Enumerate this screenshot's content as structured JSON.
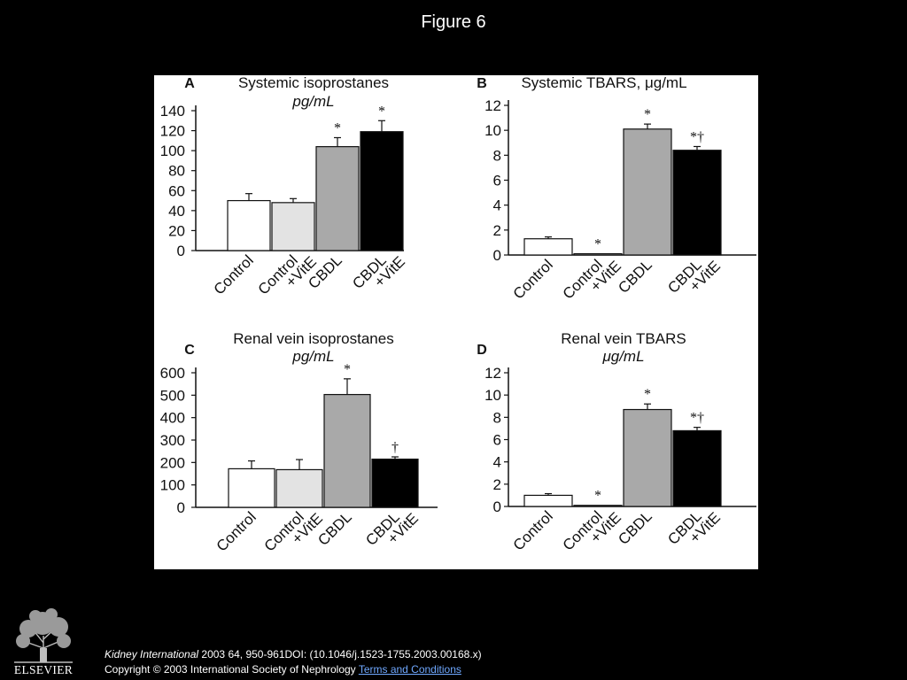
{
  "page": {
    "title": "Figure 6"
  },
  "footer": {
    "journal": "Kidney International",
    "details": " 2003 64, 950-961DOI: (10.1046/j.1523-1755.2003.00168.x)",
    "copyright": "Copyright © 2003 International Society of Nephrology",
    "terms_link": "Terms and Conditions",
    "publisher": "ELSEVIER"
  },
  "colors": {
    "control": "#ffffff",
    "control_vite": "#e3e3e3",
    "cbdl": "#a9a9a9",
    "cbdl_vite": "#000000"
  },
  "chart_data": [
    {
      "type": "bar",
      "panel_letter": "A",
      "title": "Systemic isoprostanes",
      "unit": "pg/mL",
      "categories": [
        [
          "Control"
        ],
        [
          "Control",
          "+VitE"
        ],
        [
          "CBDL"
        ],
        [
          "CBDL",
          "+VitE"
        ]
      ],
      "values": [
        50,
        48,
        104,
        119
      ],
      "errors": [
        7,
        4,
        9,
        11
      ],
      "markers": [
        "",
        "",
        "*",
        "*"
      ],
      "ylim": [
        0,
        140
      ],
      "yticks": [
        0,
        20,
        40,
        60,
        80,
        100,
        120,
        140
      ]
    },
    {
      "type": "bar",
      "panel_letter": "B",
      "title": "Systemic TBARS, μg/mL",
      "unit": "",
      "categories": [
        [
          "Control"
        ],
        [
          "Control",
          "+VitE"
        ],
        [
          "CBDL"
        ],
        [
          "CBDL",
          "+VitE"
        ]
      ],
      "values": [
        1.3,
        0.1,
        10.1,
        8.4
      ],
      "errors": [
        0.15,
        0,
        0.4,
        0.3
      ],
      "markers": [
        "",
        "*",
        "*",
        "*†"
      ],
      "ylim": [
        0,
        12
      ],
      "yticks": [
        0,
        2,
        4,
        6,
        8,
        10,
        12
      ]
    },
    {
      "type": "bar",
      "panel_letter": "C",
      "title": "Renal vein isoprostanes",
      "unit": "pg/mL",
      "categories": [
        [
          "Control"
        ],
        [
          "Control",
          "+VitE"
        ],
        [
          "CBDL"
        ],
        [
          "CBDL",
          "+VitE"
        ]
      ],
      "values": [
        172,
        168,
        503,
        215
      ],
      "errors": [
        35,
        45,
        70,
        10
      ],
      "markers": [
        "",
        "",
        "*",
        "†"
      ],
      "ylim": [
        0,
        600
      ],
      "yticks": [
        0,
        100,
        200,
        300,
        400,
        500,
        600
      ]
    },
    {
      "type": "bar",
      "panel_letter": "D",
      "title": "Renal vein TBARS",
      "unit": "μg/mL",
      "categories": [
        [
          "Control"
        ],
        [
          "Control",
          "+VitE"
        ],
        [
          "CBDL"
        ],
        [
          "CBDL",
          "+VitE"
        ]
      ],
      "values": [
        1.0,
        0.1,
        8.7,
        6.8
      ],
      "errors": [
        0.15,
        0,
        0.5,
        0.3
      ],
      "markers": [
        "",
        "*",
        "*",
        "*†"
      ],
      "ylim": [
        0,
        12
      ],
      "yticks": [
        0,
        2,
        4,
        6,
        8,
        10,
        12
      ]
    }
  ]
}
